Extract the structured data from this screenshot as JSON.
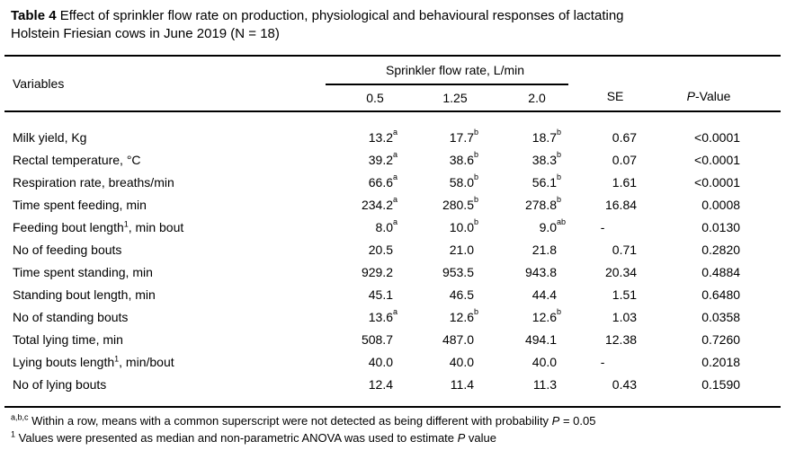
{
  "caption": {
    "bold": "Table 4",
    "line1_rest": " Effect of sprinkler flow rate on production, physiological and behavioural responses of lactating",
    "line2": "Holstein Friesian cows in June 2019 (N = 18)"
  },
  "table": {
    "variables_header": "Variables",
    "spanner": "Sprinkler flow rate, L/min",
    "flow_cols": [
      "0.5",
      "1.25",
      "2.0"
    ],
    "se_header": "SE",
    "p_header": {
      "italic": "P",
      "rest": "-Value"
    },
    "rows": [
      {
        "label": {
          "pre": "Milk yield, Kg",
          "sup": "",
          "post": ""
        },
        "values": [
          {
            "v": "13.2",
            "sup": "a"
          },
          {
            "v": "17.7",
            "sup": "b"
          },
          {
            "v": "18.7",
            "sup": "b"
          }
        ],
        "se": "0.67",
        "p": "<0.0001"
      },
      {
        "label": {
          "pre": "Rectal temperature, °C",
          "sup": "",
          "post": ""
        },
        "values": [
          {
            "v": "39.2",
            "sup": "a"
          },
          {
            "v": "38.6",
            "sup": "b"
          },
          {
            "v": "38.3",
            "sup": "b"
          }
        ],
        "se": "0.07",
        "p": "<0.0001"
      },
      {
        "label": {
          "pre": "Respiration rate, breaths/min",
          "sup": "",
          "post": ""
        },
        "values": [
          {
            "v": "66.6",
            "sup": "a"
          },
          {
            "v": "58.0",
            "sup": "b"
          },
          {
            "v": "56.1",
            "sup": "b"
          }
        ],
        "se": "1.61",
        "p": "<0.0001"
      },
      {
        "label": {
          "pre": "Time spent feeding, min",
          "sup": "",
          "post": ""
        },
        "values": [
          {
            "v": "234.2",
            "sup": "a"
          },
          {
            "v": "280.5",
            "sup": "b"
          },
          {
            "v": "278.8",
            "sup": "b"
          }
        ],
        "se": "16.84",
        "p": "0.0008"
      },
      {
        "label": {
          "pre": "Feeding bout length",
          "sup": "1",
          "post": ", min bout"
        },
        "values": [
          {
            "v": "8.0",
            "sup": "a"
          },
          {
            "v": "10.0",
            "sup": "b"
          },
          {
            "v": "9.0",
            "sup": "ab"
          }
        ],
        "se": "-",
        "p": "0.0130"
      },
      {
        "label": {
          "pre": "No of feeding bouts",
          "sup": "",
          "post": ""
        },
        "values": [
          {
            "v": "20.5",
            "sup": ""
          },
          {
            "v": "21.0",
            "sup": ""
          },
          {
            "v": "21.8",
            "sup": ""
          }
        ],
        "se": "0.71",
        "p": "0.2820"
      },
      {
        "label": {
          "pre": "Time spent standing, min",
          "sup": "",
          "post": ""
        },
        "values": [
          {
            "v": "929.2",
            "sup": ""
          },
          {
            "v": "953.5",
            "sup": ""
          },
          {
            "v": "943.8",
            "sup": ""
          }
        ],
        "se": "20.34",
        "p": "0.4884"
      },
      {
        "label": {
          "pre": "Standing bout length, min",
          "sup": "",
          "post": ""
        },
        "values": [
          {
            "v": "45.1",
            "sup": ""
          },
          {
            "v": "46.5",
            "sup": ""
          },
          {
            "v": "44.4",
            "sup": ""
          }
        ],
        "se": "1.51",
        "p": "0.6480"
      },
      {
        "label": {
          "pre": "No of standing bouts",
          "sup": "",
          "post": ""
        },
        "values": [
          {
            "v": "13.6",
            "sup": "a"
          },
          {
            "v": "12.6",
            "sup": "b"
          },
          {
            "v": "12.6",
            "sup": "b"
          }
        ],
        "se": "1.03",
        "p": "0.0358"
      },
      {
        "label": {
          "pre": "Total lying time, min",
          "sup": "",
          "post": ""
        },
        "values": [
          {
            "v": "508.7",
            "sup": ""
          },
          {
            "v": "487.0",
            "sup": ""
          },
          {
            "v": "494.1",
            "sup": ""
          }
        ],
        "se": "12.38",
        "p": "0.7260"
      },
      {
        "label": {
          "pre": "Lying bouts length",
          "sup": "1",
          "post": ", min/bout"
        },
        "values": [
          {
            "v": "40.0",
            "sup": ""
          },
          {
            "v": "40.0",
            "sup": ""
          },
          {
            "v": "40.0",
            "sup": ""
          }
        ],
        "se": "-",
        "p": "0.2018"
      },
      {
        "label": {
          "pre": "No of lying bouts",
          "sup": "",
          "post": ""
        },
        "values": [
          {
            "v": "12.4",
            "sup": ""
          },
          {
            "v": "11.4",
            "sup": ""
          },
          {
            "v": "11.3",
            "sup": ""
          }
        ],
        "se": "0.43",
        "p": "0.1590"
      }
    ]
  },
  "footnotes": [
    {
      "sup": "a,b,c",
      "pre": " Within a row, means with a common superscript were not detected as being different with probability ",
      "italic": "P",
      "post": " = 0.05"
    },
    {
      "sup": "1",
      "pre": " Values were presented as median and non-parametric ANOVA was used to estimate ",
      "italic": "P",
      "post": " value"
    }
  ]
}
